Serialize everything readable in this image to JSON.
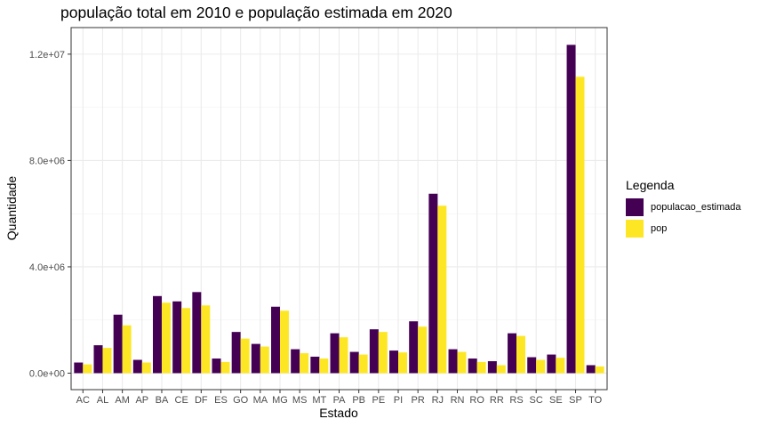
{
  "chart_data": {
    "type": "bar",
    "title": "população total em 2010 e população estimada em 2020",
    "xlabel": "Estado",
    "ylabel": "Quantidade",
    "legend_title": "Legenda",
    "legend_position": "right",
    "grid": true,
    "ylim": [
      0,
      12800000
    ],
    "yticks": [
      0,
      4000000,
      8000000,
      12000000
    ],
    "ytick_labels": [
      "0.0e+00",
      "4.0e+06",
      "8.0e+06",
      "1.2e+07"
    ],
    "categories": [
      "AC",
      "AL",
      "AM",
      "AP",
      "BA",
      "CE",
      "DF",
      "ES",
      "GO",
      "MA",
      "MG",
      "MS",
      "MT",
      "PA",
      "PB",
      "PE",
      "PI",
      "PR",
      "RJ",
      "RN",
      "RO",
      "RR",
      "RS",
      "SC",
      "SE",
      "SP",
      "TO"
    ],
    "series": [
      {
        "name": "populacao_estimada",
        "color": "#440154",
        "values": [
          400000,
          1050000,
          2200000,
          500000,
          2900000,
          2700000,
          3050000,
          550000,
          1550000,
          1100000,
          2500000,
          900000,
          620000,
          1500000,
          800000,
          1650000,
          850000,
          1950000,
          6750000,
          900000,
          550000,
          450000,
          1500000,
          600000,
          700000,
          12350000,
          300000
        ]
      },
      {
        "name": "pop",
        "color": "#FDE725",
        "values": [
          330000,
          950000,
          1800000,
          400000,
          2650000,
          2450000,
          2550000,
          420000,
          1300000,
          1000000,
          2350000,
          750000,
          550000,
          1350000,
          700000,
          1550000,
          780000,
          1750000,
          6300000,
          800000,
          420000,
          300000,
          1400000,
          500000,
          580000,
          11150000,
          250000
        ]
      }
    ]
  }
}
